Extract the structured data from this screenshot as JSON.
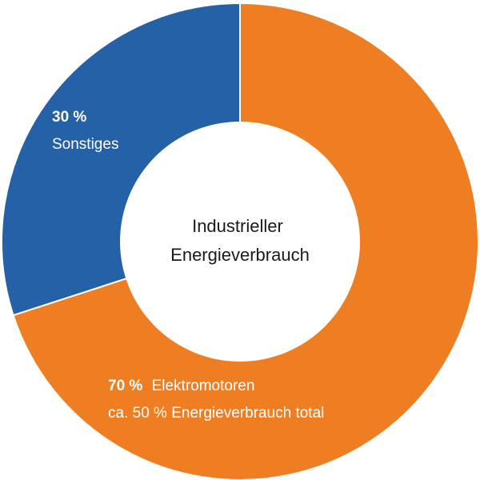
{
  "chart_data": {
    "type": "pie",
    "variant": "donut",
    "center_label": [
      "Industrieller",
      "Energieverbrauch"
    ],
    "slices": [
      {
        "label": "Elektromotoren",
        "value": 70,
        "value_text": "70 %",
        "note": "ca. 50 % Energieverbrauch total",
        "color": "#ef7d22"
      },
      {
        "label": "Sonstiges",
        "value": 30,
        "value_text": "30 %",
        "color": "#2561a7"
      }
    ]
  }
}
